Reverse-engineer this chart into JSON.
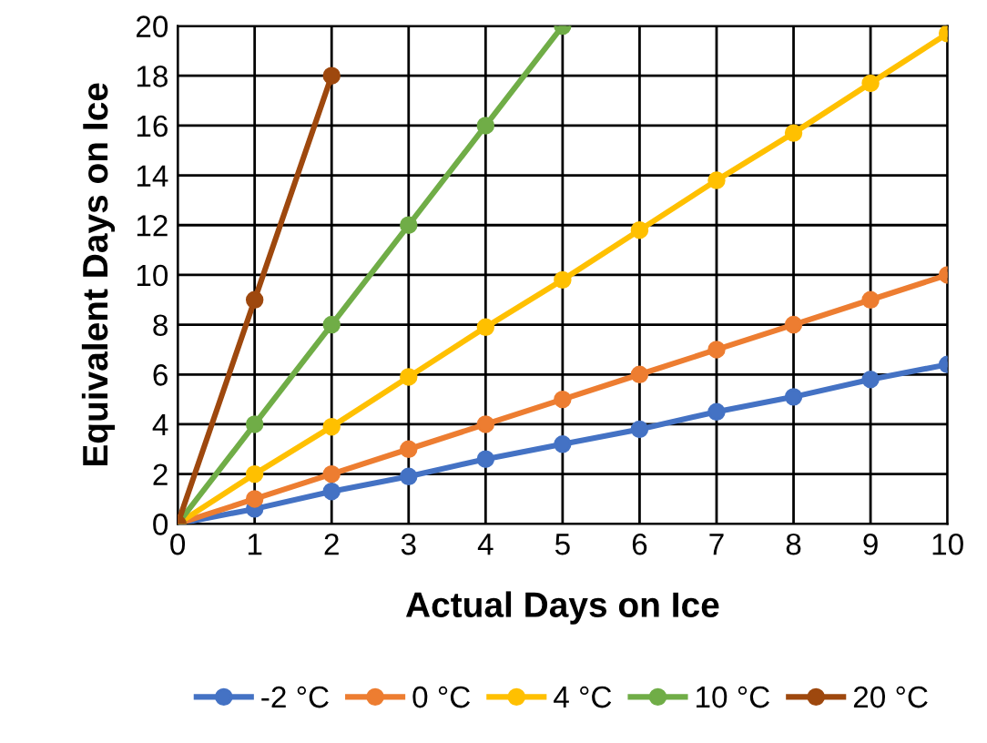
{
  "chart_data": {
    "type": "line",
    "xlabel": "Actual Days on Ice",
    "ylabel": "Equivalent Days on Ice",
    "x": [
      0,
      1,
      2,
      3,
      4,
      5,
      6,
      7,
      8,
      9,
      10
    ],
    "series": [
      {
        "name": "-2 °C",
        "color": "#4472c4",
        "values": [
          0,
          0.6,
          1.3,
          1.9,
          2.6,
          3.2,
          3.8,
          4.5,
          5.1,
          5.8,
          6.4
        ]
      },
      {
        "name": "0 °C",
        "color": "#ed7d31",
        "values": [
          0,
          1,
          2,
          3,
          4,
          5,
          6,
          7,
          8,
          9,
          10
        ]
      },
      {
        "name": "4 °C",
        "color": "#ffc000",
        "values": [
          0,
          2,
          3.9,
          5.9,
          7.9,
          9.8,
          11.8,
          13.8,
          15.7,
          17.7,
          19.7
        ]
      },
      {
        "name": "10 °C",
        "color": "#70ad47",
        "x": [
          0,
          1,
          2,
          3,
          4,
          5
        ],
        "values": [
          0,
          4,
          8,
          12,
          16,
          20
        ]
      },
      {
        "name": "20 °C",
        "color": "#9e480e",
        "x": [
          0,
          1,
          2
        ],
        "values": [
          0,
          9,
          18
        ]
      }
    ],
    "xlim": [
      0,
      10
    ],
    "ylim": [
      0,
      20
    ],
    "xticks": [
      0,
      1,
      2,
      3,
      4,
      5,
      6,
      7,
      8,
      9,
      10
    ],
    "yticks": [
      0,
      2,
      4,
      6,
      8,
      10,
      12,
      14,
      16,
      18,
      20
    ],
    "grid": true,
    "legend": "bottom",
    "marker": "circle",
    "line_style": "solid"
  }
}
